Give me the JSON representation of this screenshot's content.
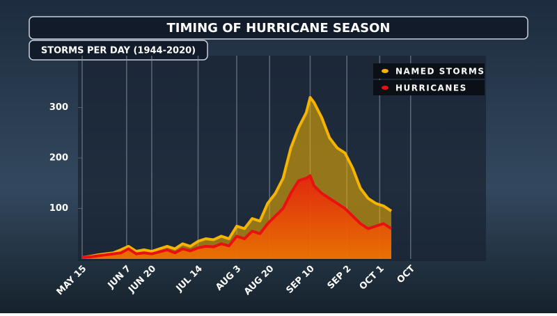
{
  "chart_data": {
    "type": "area",
    "title": "TIMING OF HURRICANE SEASON",
    "subtitle": "STORMS PER DAY (1944-2020)",
    "x": [
      0,
      4,
      8,
      12,
      16,
      20,
      24,
      28,
      32,
      36,
      40,
      44,
      48,
      52,
      56,
      60,
      64,
      68,
      72,
      76,
      80,
      84,
      88,
      92,
      96,
      100,
      104,
      108,
      112,
      116,
      118,
      120,
      124,
      128,
      132,
      136,
      140,
      144,
      148,
      152,
      156,
      160
    ],
    "series": [
      {
        "name": "NAMED STORMS",
        "color": "#f5b400",
        "values": [
          3,
          5,
          8,
          10,
          12,
          18,
          25,
          15,
          18,
          15,
          20,
          25,
          20,
          30,
          25,
          35,
          40,
          38,
          45,
          40,
          65,
          60,
          80,
          75,
          110,
          130,
          160,
          220,
          260,
          290,
          320,
          310,
          280,
          240,
          220,
          210,
          180,
          140,
          120,
          110,
          105,
          95
        ]
      },
      {
        "name": "HURRICANES",
        "color": "#e81010",
        "values": [
          3,
          4,
          6,
          8,
          10,
          12,
          20,
          10,
          12,
          10,
          14,
          18,
          12,
          20,
          16,
          22,
          25,
          24,
          30,
          26,
          45,
          40,
          55,
          50,
          70,
          85,
          100,
          130,
          155,
          160,
          165,
          145,
          130,
          120,
          110,
          100,
          85,
          70,
          60,
          65,
          70,
          60
        ]
      }
    ],
    "xlim": [
      0,
      209
    ],
    "xticks": [
      {
        "value": 0,
        "label": "MAY 15"
      },
      {
        "value": 23,
        "label": "JUN 7"
      },
      {
        "value": 36,
        "label": "JUN 20"
      },
      {
        "value": 60,
        "label": "JUL 14"
      },
      {
        "value": 80,
        "label": "AUG 3"
      },
      {
        "value": 97,
        "label": "AUG 20"
      },
      {
        "value": 118,
        "label": "SEP 10"
      },
      {
        "value": 137,
        "label": "SEP 2"
      },
      {
        "value": 154,
        "label": "OCT 1"
      },
      {
        "value": 170,
        "label": "OCT"
      }
    ],
    "ylim": [
      0,
      400
    ],
    "yticks": [
      100,
      200,
      300
    ],
    "grid": true,
    "legend": "top-right"
  }
}
